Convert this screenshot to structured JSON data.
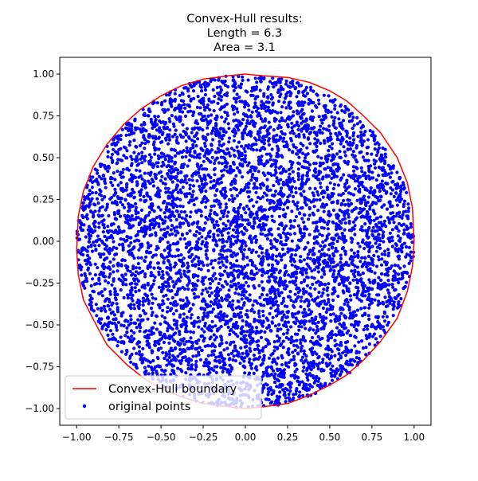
{
  "chart_data": {
    "type": "scatter",
    "title_lines": [
      "Convex-Hull results:",
      "Length = 6.3",
      "Area = 3.1"
    ],
    "xlabel": "",
    "ylabel": "",
    "xlim": [
      -1.1,
      1.1
    ],
    "ylim": [
      -1.1,
      1.1
    ],
    "xticks": [
      -1.0,
      -0.75,
      -0.5,
      -0.25,
      0.0,
      0.25,
      0.5,
      0.75,
      1.0
    ],
    "yticks": [
      -1.0,
      -0.75,
      -0.5,
      -0.25,
      0.0,
      0.25,
      0.5,
      0.75,
      1.0
    ],
    "xtick_labels": [
      "−1.00",
      "−0.75",
      "−0.50",
      "−0.25",
      "0.00",
      "0.25",
      "0.50",
      "0.75",
      "1.00"
    ],
    "ytick_labels": [
      "−1.00",
      "−0.75",
      "−0.50",
      "−0.25",
      "0.00",
      "0.25",
      "0.50",
      "0.75",
      "1.00"
    ],
    "grid": false,
    "legend_placement": "lower-left",
    "series": [
      {
        "name": "Convex-Hull boundary",
        "kind": "line",
        "color": "#ff0000",
        "x": [
          1.0,
          0.99,
          0.96,
          0.9,
          0.8,
          0.7,
          0.6,
          0.5,
          0.38,
          0.25,
          0.1,
          0.0,
          -0.1,
          -0.25,
          -0.38,
          -0.5,
          -0.62,
          -0.72,
          -0.82,
          -0.9,
          -0.96,
          -0.99,
          -1.0,
          -0.99,
          -0.96,
          -0.9,
          -0.82,
          -0.7,
          -0.6,
          -0.5,
          -0.38,
          -0.25,
          -0.1,
          0.0,
          0.1,
          0.25,
          0.38,
          0.5,
          0.6,
          0.7,
          0.8,
          0.9,
          0.96,
          0.99,
          1.0
        ],
        "y": [
          0.0,
          0.2,
          0.35,
          0.5,
          0.65,
          0.75,
          0.84,
          0.9,
          0.95,
          0.98,
          0.99,
          1.0,
          0.99,
          0.97,
          0.93,
          0.87,
          0.79,
          0.7,
          0.58,
          0.45,
          0.3,
          0.15,
          -0.05,
          -0.2,
          -0.35,
          -0.47,
          -0.62,
          -0.74,
          -0.82,
          -0.88,
          -0.93,
          -0.97,
          -0.99,
          -1.0,
          -0.99,
          -0.97,
          -0.92,
          -0.86,
          -0.8,
          -0.71,
          -0.6,
          -0.46,
          -0.3,
          -0.15,
          0.0
        ]
      },
      {
        "name": "original points",
        "kind": "scatter",
        "color": "#0000ff",
        "distribution": "uniform random points filling the unit disk",
        "count": 6000
      }
    ]
  }
}
